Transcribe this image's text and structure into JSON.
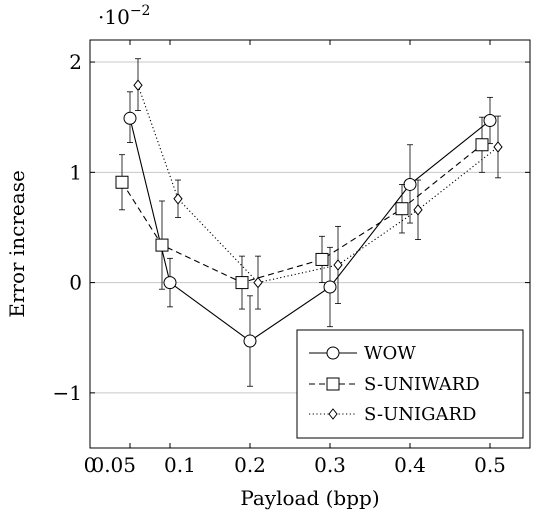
{
  "chart_data": {
    "type": "line",
    "title": "",
    "xlabel": "Payload (bpp)",
    "ylabel": "Error increase",
    "y_multiplier_label": "·10",
    "y_multiplier_exponent": "−2",
    "xlim": [
      0,
      0.55
    ],
    "ylim": [
      -1.5,
      2.2
    ],
    "x_ticks": [
      {
        "value": 0,
        "label": "0"
      },
      {
        "value": 0.05,
        "label": "0.05"
      },
      {
        "value": 0.1,
        "label": "0.1"
      },
      {
        "value": 0.2,
        "label": "0.2"
      },
      {
        "value": 0.3,
        "label": "0.3"
      },
      {
        "value": 0.4,
        "label": "0.4"
      },
      {
        "value": 0.5,
        "label": "0.5"
      }
    ],
    "y_ticks": [
      {
        "value": -1,
        "label": "−1"
      },
      {
        "value": 0,
        "label": "0"
      },
      {
        "value": 1,
        "label": "1"
      },
      {
        "value": 2,
        "label": "2"
      }
    ],
    "grid": "horizontal",
    "legend_position": "bottom-right",
    "series": [
      {
        "name": "WOW",
        "marker": "circle",
        "line_style": "solid",
        "points": [
          {
            "x": 0.05,
            "y": 1.49,
            "err_low": 1.27,
            "err_high": 1.73
          },
          {
            "x": 0.1,
            "y": 0.0,
            "err_low": -0.22,
            "err_high": 0.22
          },
          {
            "x": 0.2,
            "y": -0.53,
            "err_low": -0.94,
            "err_high": -0.12
          },
          {
            "x": 0.3,
            "y": -0.04,
            "err_low": -0.4,
            "err_high": 0.32
          },
          {
            "x": 0.4,
            "y": 0.89,
            "err_low": 0.54,
            "err_high": 1.25
          },
          {
            "x": 0.5,
            "y": 1.47,
            "err_low": 1.26,
            "err_high": 1.68
          }
        ]
      },
      {
        "name": "S-UNIWARD",
        "marker": "square",
        "line_style": "dashed",
        "points": [
          {
            "x": 0.04,
            "y": 0.91,
            "err_low": 0.66,
            "err_high": 1.16
          },
          {
            "x": 0.09,
            "y": 0.34,
            "err_low": -0.06,
            "err_high": 0.74
          },
          {
            "x": 0.19,
            "y": 0.0,
            "err_low": -0.24,
            "err_high": 0.24
          },
          {
            "x": 0.29,
            "y": 0.21,
            "err_low": 0.0,
            "err_high": 0.42
          },
          {
            "x": 0.39,
            "y": 0.67,
            "err_low": 0.45,
            "err_high": 0.89
          },
          {
            "x": 0.49,
            "y": 1.25,
            "err_low": 1.0,
            "err_high": 1.5
          }
        ]
      },
      {
        "name": "S-UNIGARD",
        "marker": "diamond",
        "line_style": "dotted",
        "points": [
          {
            "x": 0.06,
            "y": 1.79,
            "err_low": 1.56,
            "err_high": 2.03
          },
          {
            "x": 0.11,
            "y": 0.76,
            "err_low": 0.59,
            "err_high": 0.93
          },
          {
            "x": 0.21,
            "y": 0.0,
            "err_low": -0.24,
            "err_high": 0.24
          },
          {
            "x": 0.31,
            "y": 0.16,
            "err_low": -0.19,
            "err_high": 0.51
          },
          {
            "x": 0.41,
            "y": 0.66,
            "err_low": 0.39,
            "err_high": 0.93
          },
          {
            "x": 0.51,
            "y": 1.23,
            "err_low": 0.95,
            "err_high": 1.51
          }
        ]
      }
    ]
  }
}
